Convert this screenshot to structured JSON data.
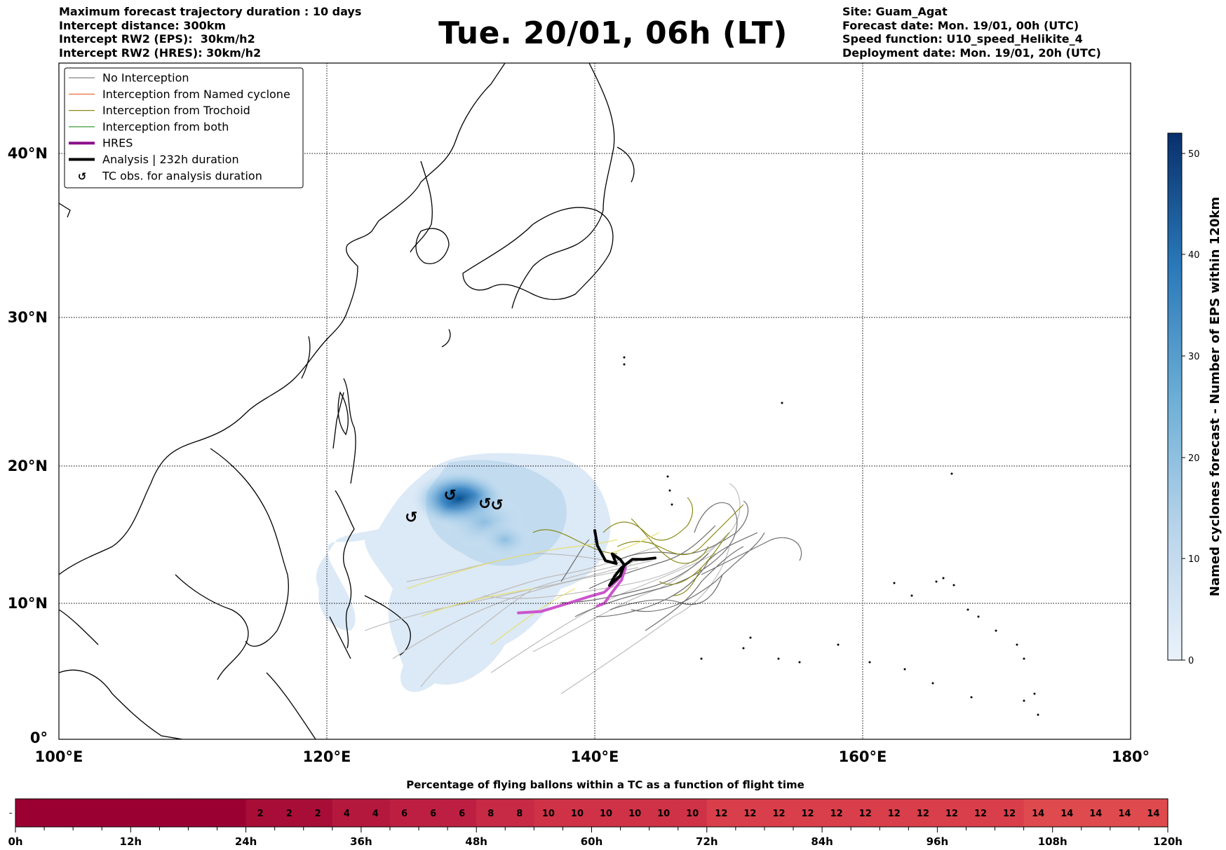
{
  "header_left": [
    "Maximum forecast trajectory duration : 10 days",
    "Intercept distance: 300km",
    "Intercept RW2 (EPS):  30km/h2",
    "Intercept RW2 (HRES): 30km/h2"
  ],
  "title": "Tue. 20/01, 06h (LT)",
  "header_right": [
    "Site: Guam_Agat",
    "Forecast date: Mon. 19/01, 00h (UTC)",
    "Speed function: U10_speed_Helikite_4",
    "Deployment date: Mon. 19/01, 20h (UTC)"
  ],
  "map": {
    "lon_labels": [
      "100°E",
      "120°E",
      "140°E",
      "160°E",
      "180°"
    ],
    "lat_labels": [
      "0°",
      "10°N",
      "20°N",
      "30°N",
      "40°N"
    ],
    "extent": {
      "lon": [
        100,
        180
      ],
      "lat": [
        0,
        45
      ]
    }
  },
  "legend": [
    {
      "label": "No Interception",
      "color": "#808080",
      "kind": "thin"
    },
    {
      "label": "Interception from Named cyclone",
      "color": "#e8602c",
      "kind": "thin"
    },
    {
      "label": "Interception from Trochoid",
      "color": "#8a8a1a",
      "kind": "thin"
    },
    {
      "label": "Interception from both",
      "color": "#3a9a3a",
      "kind": "thin"
    },
    {
      "label": "HRES",
      "color": "#8b0f8b",
      "kind": "thick"
    },
    {
      "label": "Analysis | 232h duration",
      "color": "#000000",
      "kind": "thick"
    },
    {
      "label": "TC obs. for analysis duration",
      "color": "#000000",
      "kind": "symbol"
    }
  ],
  "colorbar": {
    "label": "Named cyclones forecast - Number of EPS within 120km",
    "ticks": [
      "0",
      "10",
      "20",
      "30",
      "40",
      "50"
    ],
    "min": 0,
    "max": 52,
    "colors": [
      "#e9f1fa",
      "#08306b"
    ]
  },
  "bottom_bar": {
    "title": "Percentage of flying ballons within a TC as a function of flight time",
    "time_labels": [
      "0h",
      "12h",
      "24h",
      "36h",
      "48h",
      "60h",
      "72h",
      "84h",
      "96h",
      "108h",
      "120h"
    ],
    "cells": [
      "",
      "",
      "",
      "",
      "",
      "",
      "",
      "",
      "2",
      "2",
      "2",
      "4",
      "4",
      "6",
      "6",
      "6",
      "8",
      "8",
      "10",
      "10",
      "10",
      "10",
      "10",
      "10",
      "12",
      "12",
      "12",
      "12",
      "12",
      "12",
      "12",
      "12",
      "12",
      "12",
      "12",
      "14",
      "14",
      "14",
      "14",
      "14"
    ],
    "cell_colors": {
      "0": "#9b0033",
      "2": "#a80d38",
      "4": "#b5183d",
      "6": "#bd1f42",
      "8": "#c62a45",
      "10": "#cf3247",
      "12": "#d83f4a",
      "14": "#de4a4d"
    }
  },
  "tc_obs": [
    {
      "lon": 126.3,
      "lat": 16.3
    },
    {
      "lon": 129.2,
      "lat": 17.9
    },
    {
      "lon": 131.8,
      "lat": 17.3
    },
    {
      "lon": 132.7,
      "lat": 17.2
    }
  ],
  "trajectories": {
    "analysis": [
      [
        140.0,
        15.3
      ],
      [
        140.2,
        14.2
      ],
      [
        140.8,
        13.1
      ],
      [
        141.6,
        12.9
      ],
      [
        141.3,
        13.6
      ],
      [
        141.9,
        13.2
      ],
      [
        142.2,
        12.8
      ],
      [
        141.9,
        12.0
      ],
      [
        141.1,
        11.3
      ],
      [
        141.5,
        12.0
      ],
      [
        142.0,
        12.6
      ],
      [
        142.8,
        13.2
      ],
      [
        143.6,
        13.2
      ],
      [
        144.5,
        13.3
      ]
    ],
    "hres": [
      [
        134.3,
        9.3
      ],
      [
        136.0,
        9.4
      ],
      [
        138.0,
        10.0
      ],
      [
        139.6,
        10.5
      ],
      [
        140.7,
        10.8
      ],
      [
        141.7,
        11.7
      ],
      [
        142.3,
        12.6
      ],
      [
        142.0,
        11.7
      ],
      [
        141.3,
        10.8
      ],
      [
        140.7,
        10.0
      ],
      [
        140.2,
        9.8
      ]
    ]
  }
}
